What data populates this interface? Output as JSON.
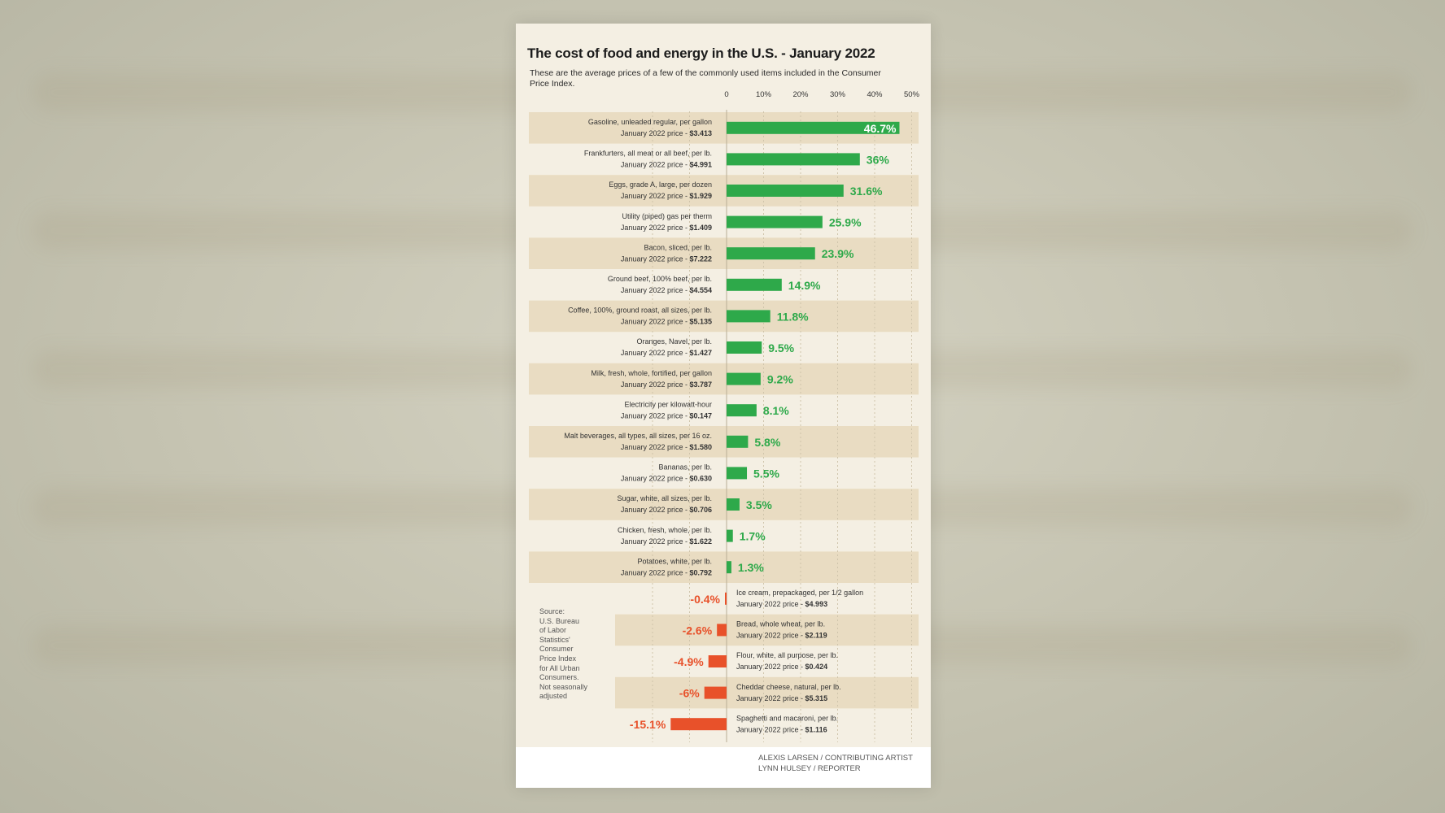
{
  "chart_data": {
    "type": "bar",
    "title": "The cost of food and energy in the U.S. - January 2022",
    "subtitle": "These are the average prices of a few of the commonly used items included in the Consumer Price Index.",
    "x_ticks": [
      "0",
      "10%",
      "20%",
      "30%",
      "40%",
      "50%"
    ],
    "xlim": [
      -16,
      50
    ],
    "grid": true,
    "colors": {
      "increase": "#2ea94a",
      "decrease": "#e8512a",
      "band": "#e9dcc2"
    },
    "items": [
      {
        "label": "Gasoline, unleaded regular, per gallon",
        "price_prefix": "January 2022 price - ",
        "price": "$3.413",
        "value": 46.7,
        "display": "46.7%"
      },
      {
        "label": "Frankfurters, all meat or all beef, per lb.",
        "price_prefix": "January 2022 price - ",
        "price": "$4.991",
        "value": 36,
        "display": "36%"
      },
      {
        "label": "Eggs, grade A, large, per dozen",
        "price_prefix": "January 2022 price - ",
        "price": "$1.929",
        "value": 31.6,
        "display": "31.6%"
      },
      {
        "label": "Utility (piped) gas per therm",
        "price_prefix": "January 2022 price - ",
        "price": "$1.409",
        "value": 25.9,
        "display": "25.9%"
      },
      {
        "label": "Bacon, sliced, per lb.",
        "price_prefix": "January 2022 price - ",
        "price": "$7.222",
        "value": 23.9,
        "display": "23.9%"
      },
      {
        "label": "Ground beef, 100% beef, per lb.",
        "price_prefix": "January 2022 price - ",
        "price": "$4.554",
        "value": 14.9,
        "display": "14.9%"
      },
      {
        "label": "Coffee, 100%, ground roast, all sizes, per lb.",
        "price_prefix": "January 2022 price - ",
        "price": "$5.135",
        "value": 11.8,
        "display": "11.8%"
      },
      {
        "label": "Oranges, Navel, per lb.",
        "price_prefix": "January 2022 price - ",
        "price": "$1.427",
        "value": 9.5,
        "display": "9.5%"
      },
      {
        "label": "Milk, fresh, whole, fortified, per gallon",
        "price_prefix": "January 2022 price - ",
        "price": "$3.787",
        "value": 9.2,
        "display": "9.2%"
      },
      {
        "label": "Electricity per kilowatt-hour",
        "price_prefix": "January 2022 price - ",
        "price": "$0.147",
        "value": 8.1,
        "display": "8.1%"
      },
      {
        "label": "Malt beverages, all types, all sizes, per 16 oz.",
        "price_prefix": "January 2022 price - ",
        "price": "$1.580",
        "value": 5.8,
        "display": "5.8%"
      },
      {
        "label": "Bananas, per lb.",
        "price_prefix": "January 2022 price - ",
        "price": "$0.630",
        "value": 5.5,
        "display": "5.5%"
      },
      {
        "label": "Sugar, white, all sizes, per lb.",
        "price_prefix": "January 2022 price - ",
        "price": "$0.706",
        "value": 3.5,
        "display": "3.5%"
      },
      {
        "label": "Chicken, fresh, whole, per lb.",
        "price_prefix": "January 2022 price - ",
        "price": "$1.622",
        "value": 1.7,
        "display": "1.7%"
      },
      {
        "label": "Potatoes, white, per lb.",
        "price_prefix": "January 2022 price - ",
        "price": "$0.792",
        "value": 1.3,
        "display": "1.3%"
      },
      {
        "label": "Ice cream, prepackaged, per 1/2 gallon",
        "price_prefix": "January 2022 price - ",
        "price": "$4.993",
        "value": -0.4,
        "display": "-0.4%"
      },
      {
        "label": "Bread, whole wheat, per lb.",
        "price_prefix": "January 2022 price - ",
        "price": "$2.119",
        "value": -2.6,
        "display": "-2.6%"
      },
      {
        "label": "Flour, white, all purpose, per lb.",
        "price_prefix": "January 2022 price - ",
        "price": "$0.424",
        "value": -4.9,
        "display": "-4.9%"
      },
      {
        "label": "Cheddar cheese, natural, per lb.",
        "price_prefix": "January 2022 price - ",
        "price": "$5.315",
        "value": -6,
        "display": "-6%"
      },
      {
        "label": "Spaghetti and macaroni, per lb.",
        "price_prefix": "January 2022 price - ",
        "price": "$1.116",
        "value": -15.1,
        "display": "-15.1%"
      }
    ],
    "source": "Source:\nU.S. Bureau\nof Labor\nStatistics'\nConsumer\nPrice Index\nfor All Urban\nConsumers.\nNot seasonally\nadjusted",
    "credits": [
      "ALEXIS LARSEN / CONTRIBUTING ARTIST",
      "LYNN HULSEY / REPORTER"
    ]
  }
}
